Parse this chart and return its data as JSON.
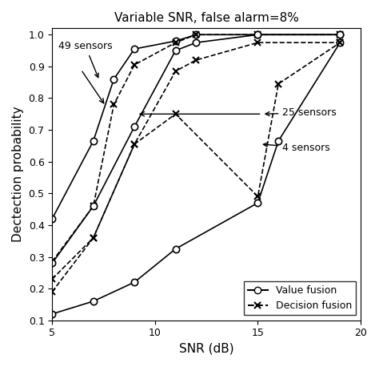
{
  "title": "Variable SNR, false alarm=8%",
  "xlabel": "SNR (dB)",
  "ylabel": "Dectection probability",
  "xlim": [
    5,
    20
  ],
  "ylim": [
    0.1,
    1.02
  ],
  "xticks": [
    5,
    10,
    15,
    20
  ],
  "yticks": [
    0.1,
    0.2,
    0.3,
    0.4,
    0.5,
    0.6,
    0.7,
    0.8,
    0.9,
    1.0
  ],
  "value_fusion_49_x": [
    5,
    7,
    8,
    9,
    11,
    12,
    15,
    19
  ],
  "value_fusion_49_y": [
    0.42,
    0.665,
    0.86,
    0.955,
    0.98,
    1.0,
    1.0,
    1.0
  ],
  "decision_fusion_49_x": [
    5,
    7,
    8,
    9,
    11,
    12,
    15,
    19
  ],
  "decision_fusion_49_y": [
    0.285,
    0.46,
    0.78,
    0.905,
    0.975,
    1.0,
    1.0,
    1.0
  ],
  "value_fusion_25_x": [
    5,
    7,
    9,
    11,
    12,
    15,
    19
  ],
  "value_fusion_25_y": [
    0.28,
    0.46,
    0.71,
    0.95,
    0.975,
    1.0,
    1.0
  ],
  "decision_fusion_25_x": [
    5,
    7,
    9,
    11,
    12,
    15,
    19
  ],
  "decision_fusion_25_y": [
    0.23,
    0.36,
    0.655,
    0.885,
    0.92,
    0.975,
    0.975
  ],
  "value_fusion_4_x": [
    5,
    7,
    9,
    11,
    15,
    16,
    19
  ],
  "value_fusion_4_y": [
    0.12,
    0.16,
    0.22,
    0.325,
    0.47,
    0.665,
    0.975
  ],
  "decision_fusion_4_x": [
    5,
    7,
    9,
    11,
    15,
    16,
    19
  ],
  "decision_fusion_4_y": [
    0.19,
    0.36,
    0.655,
    0.75,
    0.49,
    0.845,
    0.975
  ],
  "background_color": "#ffffff"
}
